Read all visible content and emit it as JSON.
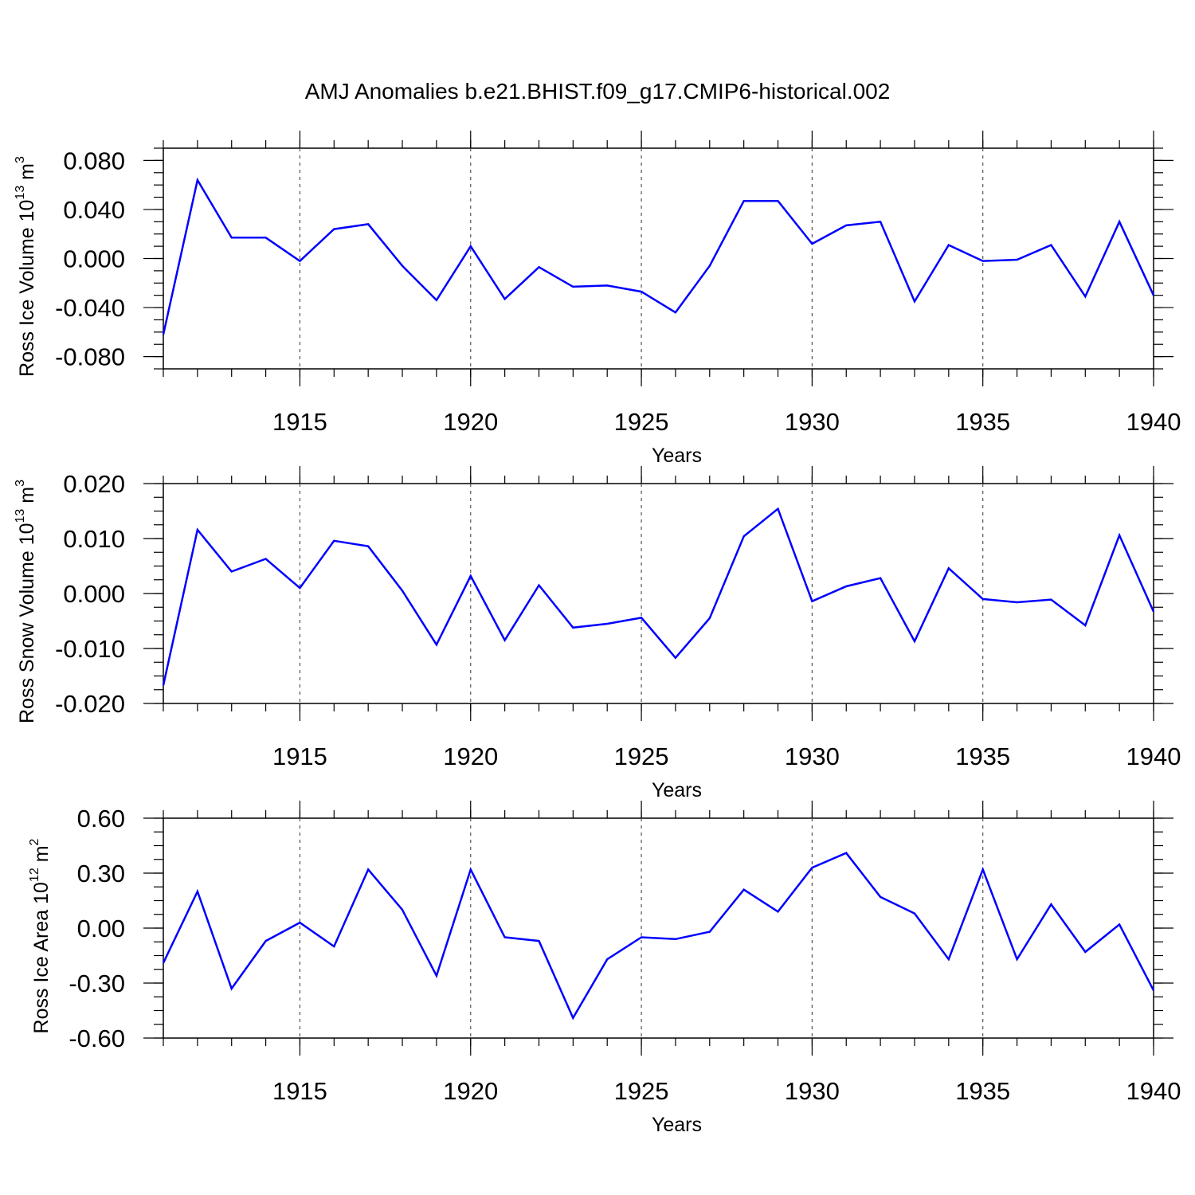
{
  "figure": {
    "title": "AMJ Anomalies b.e21.BHIST.f09_g17.CMIP6-historical.002"
  },
  "colors": {
    "line": "#0000ff",
    "axis": "#000000"
  },
  "chart_data": [
    {
      "type": "line",
      "ylabel_parts": [
        "Ross Ice Volume 10",
        "13",
        " m",
        "3"
      ],
      "xlabel": "Years",
      "xlim": [
        1911,
        1940
      ],
      "ylim": [
        -0.09,
        0.09
      ],
      "xticks": [
        "1915",
        "1920",
        "1925",
        "1930",
        "1935",
        "1940"
      ],
      "yticks": [
        "0.080",
        "0.040",
        "0.000",
        "-0.040",
        "-0.080"
      ],
      "ytick_values": [
        0.08,
        0.04,
        0.0,
        -0.04,
        -0.08
      ],
      "grid": "x-dashed",
      "series": [
        {
          "x": [
            1911,
            1912,
            1913,
            1914,
            1915,
            1916,
            1917,
            1918,
            1919,
            1920,
            1921,
            1922,
            1923,
            1924,
            1925,
            1926,
            1927,
            1928,
            1929,
            1930,
            1931,
            1932,
            1933,
            1934,
            1935,
            1936,
            1937,
            1938,
            1939,
            1940
          ],
          "values": [
            -0.062,
            0.064,
            0.017,
            0.017,
            -0.002,
            0.024,
            0.028,
            -0.006,
            -0.034,
            0.01,
            -0.033,
            -0.007,
            -0.023,
            -0.022,
            -0.027,
            -0.044,
            -0.006,
            0.047,
            0.047,
            0.012,
            0.027,
            0.03,
            -0.035,
            0.011,
            -0.002,
            -0.001,
            0.011,
            -0.031,
            0.03,
            -0.03
          ]
        }
      ]
    },
    {
      "type": "line",
      "ylabel_parts": [
        "Ross Snow Volume 10",
        "13",
        " m",
        "3"
      ],
      "xlabel": "Years",
      "xlim": [
        1911,
        1940
      ],
      "ylim": [
        -0.02,
        0.02
      ],
      "xticks": [
        "1915",
        "1920",
        "1925",
        "1930",
        "1935",
        "1940"
      ],
      "yticks": [
        "0.020",
        "0.010",
        "0.000",
        "-0.010",
        "-0.020"
      ],
      "ytick_values": [
        0.02,
        0.01,
        0.0,
        -0.01,
        -0.02
      ],
      "grid": "x-dashed",
      "series": [
        {
          "x": [
            1911,
            1912,
            1913,
            1914,
            1915,
            1916,
            1917,
            1918,
            1919,
            1920,
            1921,
            1922,
            1923,
            1924,
            1925,
            1926,
            1927,
            1928,
            1929,
            1930,
            1931,
            1932,
            1933,
            1934,
            1935,
            1936,
            1937,
            1938,
            1939,
            1940
          ],
          "values": [
            -0.0167,
            0.0116,
            0.004,
            0.0063,
            0.001,
            0.0096,
            0.0086,
            0.0005,
            -0.0093,
            0.0032,
            -0.0085,
            0.0015,
            -0.0062,
            -0.0055,
            -0.0044,
            -0.0117,
            -0.0045,
            0.0104,
            0.0154,
            -0.0014,
            0.0013,
            0.0028,
            -0.0087,
            0.0046,
            -0.001,
            -0.0016,
            -0.0011,
            -0.0058,
            0.0106,
            -0.0033
          ]
        }
      ]
    },
    {
      "type": "line",
      "ylabel_parts": [
        "Ross Ice Area 10",
        "12",
        " m",
        "2"
      ],
      "xlabel": "Years",
      "xlim": [
        1911,
        1940
      ],
      "ylim": [
        -0.6,
        0.6
      ],
      "xticks": [
        "1915",
        "1920",
        "1925",
        "1930",
        "1935",
        "1940"
      ],
      "yticks": [
        "0.60",
        "0.30",
        "0.00",
        "-0.30",
        "-0.60"
      ],
      "ytick_values": [
        0.6,
        0.3,
        0.0,
        -0.3,
        -0.6
      ],
      "grid": "x-dashed",
      "series": [
        {
          "x": [
            1911,
            1912,
            1913,
            1914,
            1915,
            1916,
            1917,
            1918,
            1919,
            1920,
            1921,
            1922,
            1923,
            1924,
            1925,
            1926,
            1927,
            1928,
            1929,
            1930,
            1931,
            1932,
            1933,
            1934,
            1935,
            1936,
            1937,
            1938,
            1939,
            1940
          ],
          "values": [
            -0.19,
            0.2,
            -0.33,
            -0.07,
            0.03,
            -0.1,
            0.32,
            0.1,
            -0.26,
            0.32,
            -0.05,
            -0.07,
            -0.49,
            -0.17,
            -0.05,
            -0.06,
            -0.02,
            0.21,
            0.09,
            0.33,
            0.41,
            0.17,
            0.08,
            -0.17,
            0.32,
            -0.17,
            0.13,
            -0.13,
            0.02,
            -0.34
          ]
        }
      ]
    }
  ]
}
